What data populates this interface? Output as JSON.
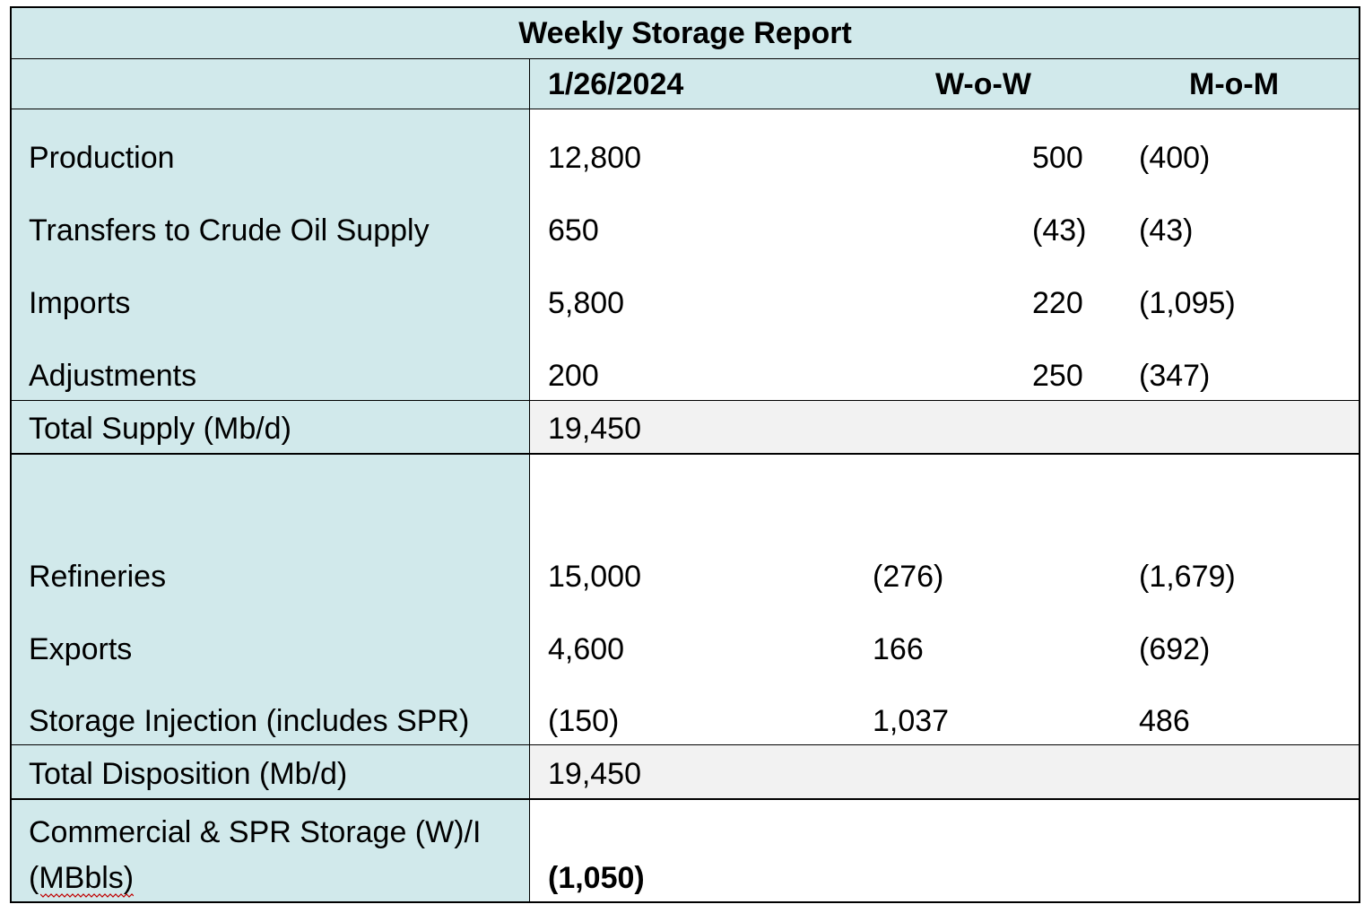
{
  "report": {
    "title": "Weekly Storage Report",
    "header": {
      "date": "1/26/2024",
      "wow": "W-o-W",
      "mom": "M-o-M"
    },
    "supply_rows": [
      {
        "label": "Production",
        "value": "12,800",
        "wow": "500",
        "mom": "(400)"
      },
      {
        "label": "Transfers to Crude Oil Supply",
        "value": "650",
        "wow": "(43)",
        "mom": "(43)"
      },
      {
        "label": "Imports",
        "value": "5,800",
        "wow": "220",
        "mom": "(1,095)"
      },
      {
        "label": "Adjustments",
        "value": "200",
        "wow": "250",
        "mom": "(347)"
      }
    ],
    "total_supply": {
      "label": "Total Supply (Mb/d)",
      "value": "19,450"
    },
    "disposition_rows": [
      {
        "label": "Refineries",
        "value": "15,000",
        "wow": "(276)",
        "mom": "(1,679)"
      },
      {
        "label": "Exports",
        "value": "4,600",
        "wow": "166",
        "mom": "(692)"
      },
      {
        "label": "Storage Injection (includes SPR)",
        "value": "(150)",
        "wow": "1,037",
        "mom": "486"
      }
    ],
    "total_disposition": {
      "label": "Total Disposition (Mb/d)",
      "value": "19,450"
    },
    "storage": {
      "label_line1": "Commercial & SPR Storage (W)/I",
      "label_line2": "(MBbls)",
      "value": "(1,050)"
    },
    "colors": {
      "label_bg": "#d1e9eb",
      "total_bg": "#f2f2f2",
      "border": "#000000",
      "spellcheck": "#c00000"
    }
  }
}
